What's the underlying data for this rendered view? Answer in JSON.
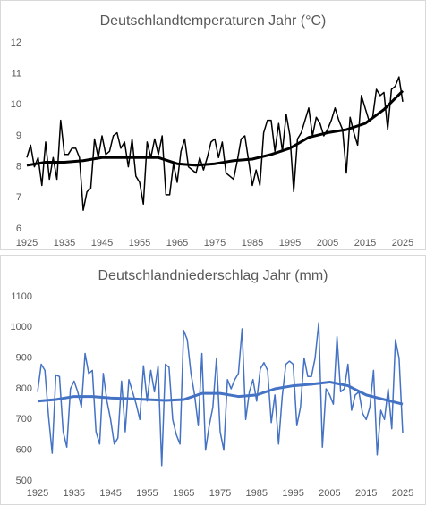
{
  "chart_data": [
    {
      "type": "line",
      "title": "Deutschlandtemperaturen Jahr (°C)",
      "x": [
        1925,
        1926,
        1927,
        1928,
        1929,
        1930,
        1931,
        1932,
        1933,
        1934,
        1935,
        1936,
        1937,
        1938,
        1939,
        1940,
        1941,
        1942,
        1943,
        1944,
        1945,
        1946,
        1947,
        1948,
        1949,
        1950,
        1951,
        1952,
        1953,
        1954,
        1955,
        1956,
        1957,
        1958,
        1959,
        1960,
        1961,
        1962,
        1963,
        1964,
        1965,
        1966,
        1967,
        1968,
        1969,
        1970,
        1971,
        1972,
        1973,
        1974,
        1975,
        1976,
        1977,
        1978,
        1979,
        1980,
        1981,
        1982,
        1983,
        1984,
        1985,
        1986,
        1987,
        1988,
        1989,
        1990,
        1991,
        1992,
        1993,
        1994,
        1995,
        1996,
        1997,
        1998,
        1999,
        2000,
        2001,
        2002,
        2003,
        2004,
        2005,
        2006,
        2007,
        2008,
        2009,
        2010,
        2011,
        2012,
        2013,
        2014,
        2015,
        2016,
        2017,
        2018,
        2019,
        2020,
        2021,
        2022,
        2023,
        2024,
        2025
      ],
      "series": [
        {
          "color": "#000000",
          "linewidth": 1.5,
          "values": [
            8.3,
            8.7,
            8.0,
            8.3,
            7.4,
            8.8,
            7.6,
            8.3,
            7.6,
            9.5,
            8.4,
            8.4,
            8.6,
            8.6,
            8.3,
            6.6,
            7.2,
            7.3,
            8.9,
            8.3,
            9.0,
            8.4,
            8.5,
            9.0,
            9.1,
            8.6,
            8.8,
            8.0,
            8.9,
            7.7,
            7.5,
            6.8,
            8.8,
            8.3,
            8.9,
            8.4,
            9.0,
            7.1,
            7.1,
            8.1,
            7.5,
            8.5,
            8.9,
            8.0,
            7.9,
            7.8,
            8.3,
            7.9,
            8.3,
            8.8,
            8.9,
            8.3,
            8.8,
            7.8,
            7.7,
            7.6,
            8.2,
            8.9,
            9.0,
            8.2,
            7.4,
            7.9,
            7.4,
            9.1,
            9.5,
            9.5,
            8.5,
            9.4,
            8.5,
            9.7,
            9.0,
            7.2,
            8.9,
            9.1,
            9.5,
            9.9,
            9.0,
            9.6,
            9.4,
            9.0,
            9.2,
            9.5,
            9.9,
            9.5,
            9.2,
            7.8,
            9.6,
            9.1,
            8.7,
            10.3,
            9.9,
            9.5,
            9.6,
            10.5,
            10.3,
            10.4,
            9.2,
            10.5,
            10.6,
            10.9,
            10.1
          ]
        },
        {
          "color": "#000000",
          "linewidth": 3,
          "x": [
            1925,
            1930,
            1935,
            1940,
            1945,
            1950,
            1955,
            1960,
            1965,
            1970,
            1975,
            1980,
            1985,
            1990,
            1995,
            2000,
            2005,
            2010,
            2015,
            2020,
            2025
          ],
          "values": [
            8.05,
            8.15,
            8.15,
            8.2,
            8.3,
            8.3,
            8.3,
            8.3,
            8.1,
            8.05,
            8.1,
            8.2,
            8.25,
            8.4,
            8.6,
            8.95,
            9.1,
            9.2,
            9.4,
            9.85,
            10.45
          ]
        }
      ],
      "xlim": [
        1925,
        2025
      ],
      "xticks": [
        1925,
        1935,
        1945,
        1955,
        1965,
        1975,
        1985,
        1995,
        2005,
        2015,
        2025
      ],
      "ylim": [
        6,
        12
      ],
      "yticks": [
        6,
        7,
        8,
        9,
        10,
        11,
        12
      ],
      "grid": false
    },
    {
      "type": "line",
      "title": "Deutschlandniederschlag Jahr (mm)",
      "x": [
        1925,
        1926,
        1927,
        1928,
        1929,
        1930,
        1931,
        1932,
        1933,
        1934,
        1935,
        1936,
        1937,
        1938,
        1939,
        1940,
        1941,
        1942,
        1943,
        1944,
        1945,
        1946,
        1947,
        1948,
        1949,
        1950,
        1951,
        1952,
        1953,
        1954,
        1955,
        1956,
        1957,
        1958,
        1959,
        1960,
        1961,
        1962,
        1963,
        1964,
        1965,
        1966,
        1967,
        1968,
        1969,
        1970,
        1971,
        1972,
        1973,
        1974,
        1975,
        1976,
        1977,
        1978,
        1979,
        1980,
        1981,
        1982,
        1983,
        1984,
        1985,
        1986,
        1987,
        1988,
        1989,
        1990,
        1991,
        1992,
        1993,
        1994,
        1995,
        1996,
        1997,
        1998,
        1999,
        2000,
        2001,
        2002,
        2003,
        2004,
        2005,
        2006,
        2007,
        2008,
        2009,
        2010,
        2011,
        2012,
        2013,
        2014,
        2015,
        2016,
        2017,
        2018,
        2019,
        2020,
        2021,
        2022,
        2023,
        2024,
        2025
      ],
      "series": [
        {
          "color": "#4472c4",
          "linewidth": 1.5,
          "values": [
            790,
            880,
            860,
            710,
            590,
            845,
            840,
            660,
            610,
            800,
            825,
            790,
            740,
            915,
            850,
            860,
            660,
            620,
            850,
            760,
            700,
            620,
            640,
            825,
            660,
            830,
            790,
            750,
            700,
            875,
            760,
            860,
            790,
            875,
            550,
            880,
            870,
            700,
            650,
            620,
            990,
            960,
            850,
            780,
            680,
            915,
            600,
            680,
            740,
            900,
            660,
            600,
            830,
            800,
            830,
            850,
            995,
            700,
            790,
            830,
            760,
            865,
            885,
            860,
            690,
            780,
            620,
            775,
            880,
            890,
            880,
            680,
            740,
            900,
            840,
            840,
            900,
            1015,
            610,
            800,
            780,
            750,
            970,
            790,
            800,
            880,
            730,
            780,
            790,
            720,
            700,
            740,
            860,
            585,
            730,
            700,
            800,
            670,
            960,
            900,
            655
          ]
        },
        {
          "color": "#4472c4",
          "linewidth": 3,
          "x": [
            1925,
            1930,
            1935,
            1940,
            1945,
            1950,
            1955,
            1960,
            1965,
            1970,
            1975,
            1980,
            1985,
            1990,
            1995,
            2000,
            2005,
            2010,
            2015,
            2020,
            2025
          ],
          "values": [
            760,
            765,
            775,
            775,
            770,
            768,
            765,
            762,
            765,
            785,
            785,
            775,
            780,
            800,
            810,
            815,
            822,
            810,
            780,
            765,
            750
          ]
        }
      ],
      "xlim": [
        1925,
        2025
      ],
      "xticks": [
        1925,
        1935,
        1945,
        1955,
        1965,
        1975,
        1985,
        1995,
        2005,
        2015,
        2025
      ],
      "ylim": [
        500,
        1100
      ],
      "yticks": [
        500,
        600,
        700,
        800,
        900,
        1000,
        1100
      ],
      "grid": false
    }
  ]
}
